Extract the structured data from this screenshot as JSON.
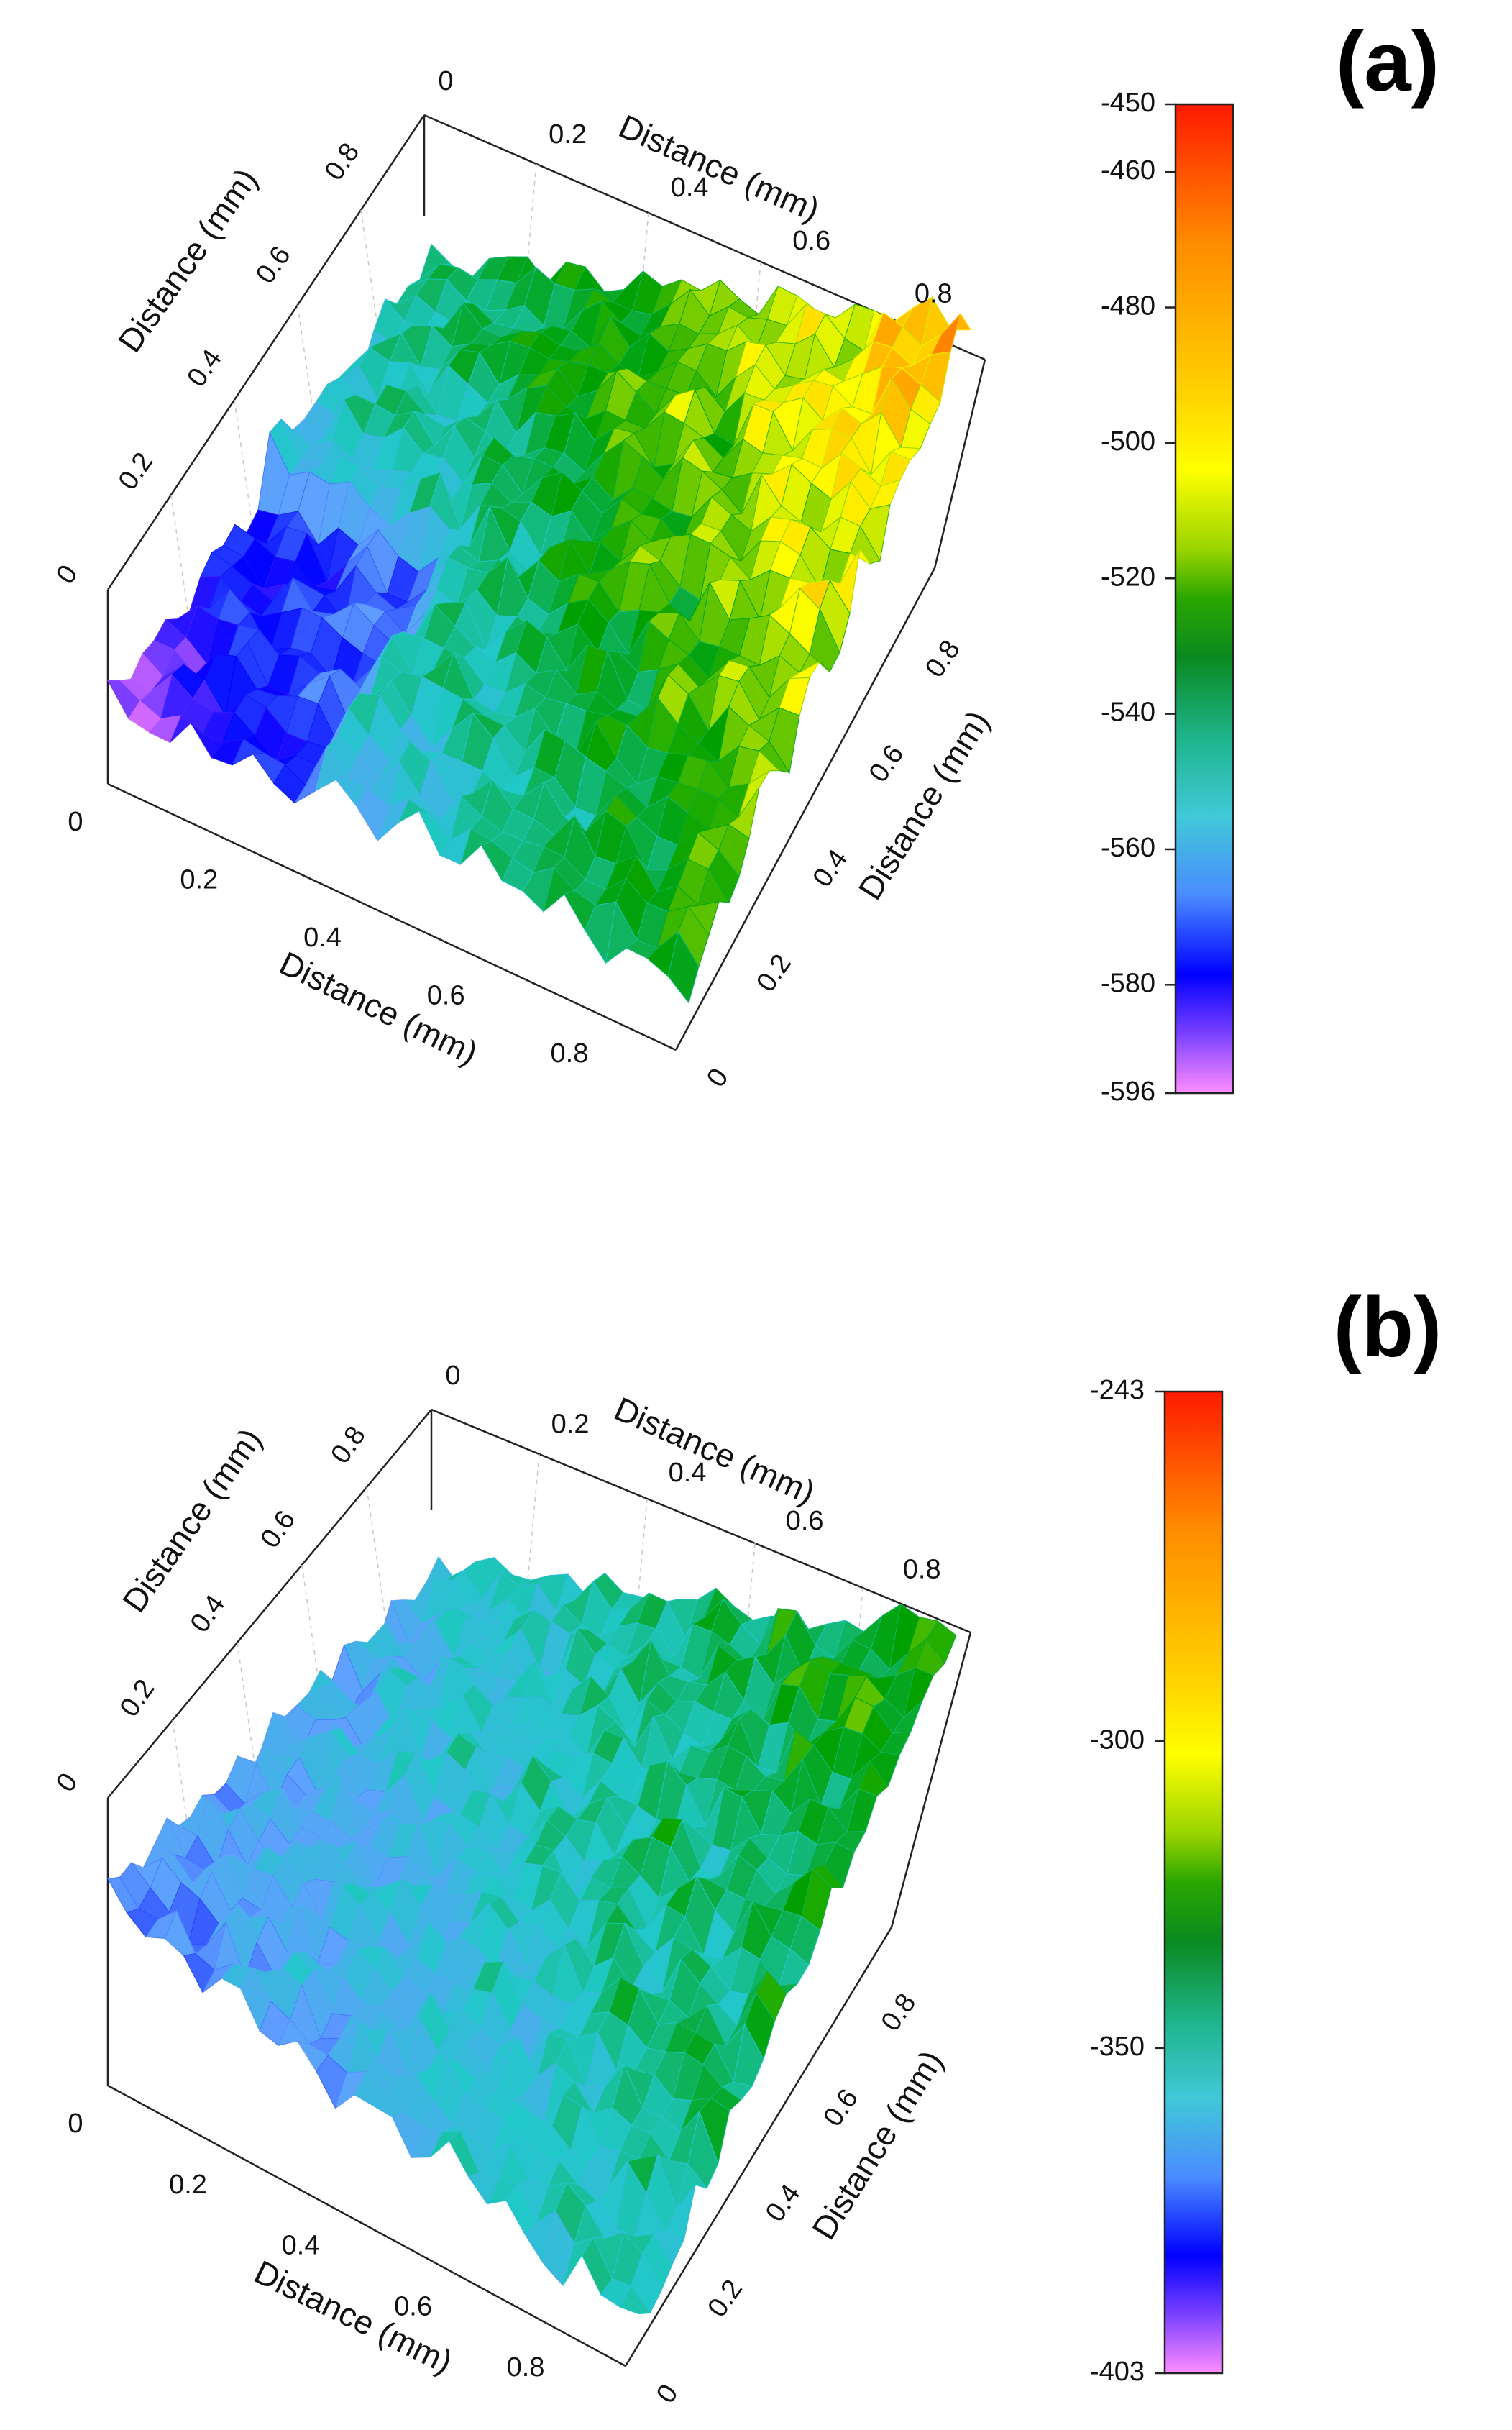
{
  "chart_data": [
    {
      "type": "surface",
      "panel_label": "(a)",
      "x": [
        0,
        0.2,
        0.4,
        0.6,
        0.8
      ],
      "y": [
        0,
        0.2,
        0.4,
        0.6,
        0.8
      ],
      "x_ticks": [
        "0",
        "0.2",
        "0.4",
        "0.6",
        "0.8"
      ],
      "y_ticks": [
        "0",
        "0.2",
        "0.4",
        "0.6",
        "0.8"
      ],
      "z_ticks": [
        "0",
        "0.2",
        "0.4",
        "0.6",
        "0.8"
      ],
      "axis_labels": {
        "x_front": "Distance (mm)",
        "y_right": "Distance (mm)",
        "x_back": "Distance (mm)",
        "y_left": "Distance (mm)"
      },
      "zlim": [
        -596,
        -450
      ],
      "colorbar_ticks": [
        -450,
        -460,
        -480,
        -500,
        -520,
        -540,
        -560,
        -580,
        -596
      ],
      "colormap": [
        "#ff0000",
        "#ff8000",
        "#ffff00",
        "#00a000",
        "#20c8c8",
        "#60a0ff",
        "#0000ff",
        "#ff80ff"
      ]
    },
    {
      "type": "surface",
      "panel_label": "(b)",
      "x": [
        0,
        0.2,
        0.4,
        0.6,
        0.8
      ],
      "y": [
        0,
        0.2,
        0.4,
        0.6,
        0.8
      ],
      "x_ticks": [
        "0",
        "0.2",
        "0.4",
        "0.6",
        "0.8"
      ],
      "y_ticks": [
        "0",
        "0.2",
        "0.4",
        "0.6",
        "0.8"
      ],
      "z_ticks": [
        "0",
        "0.2",
        "0.4",
        "0.6",
        "0.8"
      ],
      "axis_labels": {
        "x_front": "Distance (mm)",
        "y_right": "Distance (mm)",
        "x_back": "Distance (mm)",
        "y_left": "Distance (mm)"
      },
      "zlim": [
        -403,
        -243
      ],
      "colorbar_ticks": [
        -243,
        -300,
        -350,
        -403
      ],
      "colormap": [
        "#ff0000",
        "#ff8000",
        "#ffff00",
        "#00a000",
        "#20c8c8",
        "#60a0ff",
        "#0000ff",
        "#ff80ff"
      ]
    }
  ]
}
